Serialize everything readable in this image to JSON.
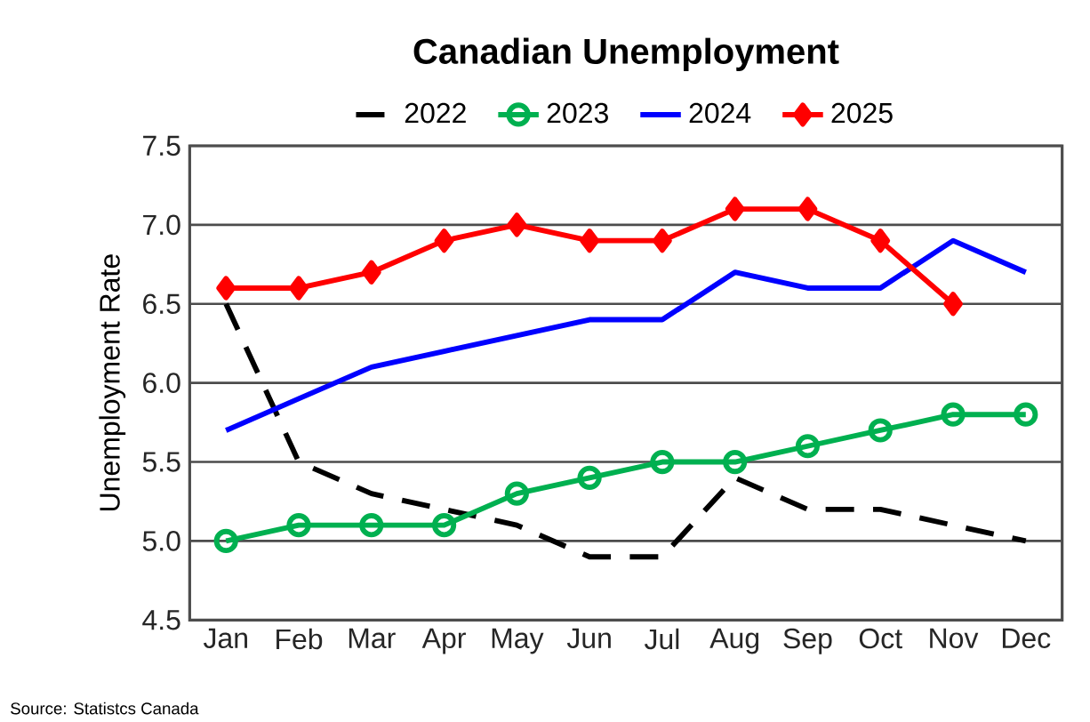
{
  "chart_data": {
    "type": "line",
    "title": "Canadian Unemployment",
    "ylabel": "Unemployment Rate",
    "categories": [
      "Jan",
      "Feb",
      "Mar",
      "Apr",
      "May",
      "Jun",
      "Jul",
      "Aug",
      "Sep",
      "Oct",
      "Nov",
      "Dec"
    ],
    "series": [
      {
        "name": "2022",
        "color": "#000000",
        "line_style": "dashed",
        "marker": "none",
        "values": [
          6.5,
          5.5,
          5.3,
          5.2,
          5.1,
          4.9,
          4.9,
          5.4,
          5.2,
          5.2,
          5.1,
          5.0
        ]
      },
      {
        "name": "2023",
        "color": "#00b050",
        "line_style": "solid",
        "marker": "circle",
        "values": [
          5.0,
          5.1,
          5.1,
          5.1,
          5.3,
          5.4,
          5.5,
          5.5,
          5.6,
          5.7,
          5.8,
          5.8
        ]
      },
      {
        "name": "2024",
        "color": "#0000ff",
        "line_style": "solid",
        "marker": "none",
        "values": [
          5.7,
          5.9,
          6.1,
          6.2,
          6.3,
          6.4,
          6.4,
          6.7,
          6.6,
          6.6,
          6.9,
          6.7
        ]
      },
      {
        "name": "2025",
        "color": "#ff0000",
        "line_style": "solid",
        "marker": "diamond",
        "values": [
          6.6,
          6.6,
          6.7,
          6.9,
          7.0,
          6.9,
          6.9,
          7.1,
          7.1,
          6.9,
          6.5,
          null
        ]
      }
    ],
    "ylim": [
      4.5,
      7.5
    ],
    "yticks": [
      {
        "value": 4.5,
        "label": "4.5"
      },
      {
        "value": 5.0,
        "label": "5.0"
      },
      {
        "value": 5.5,
        "label": "5.5"
      },
      {
        "value": 6.0,
        "label": "6.0"
      },
      {
        "value": 6.5,
        "label": "6.5"
      },
      {
        "value": 7.0,
        "label": "7.0"
      },
      {
        "value": 7.5,
        "label": "7.5"
      }
    ],
    "grid": "y",
    "legend": "top",
    "annotations": [
      "Source: Statistcs Canada"
    ]
  }
}
